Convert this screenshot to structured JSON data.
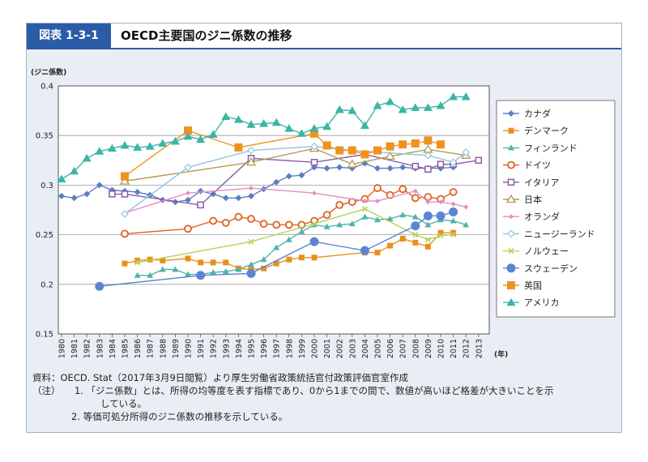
{
  "header": {
    "figure_number": "図表 1-3-1",
    "title": "OECD主要国のジニ係数の推移"
  },
  "chart_data": {
    "type": "line",
    "ylabel": "(ジニ係数)",
    "xunit": "(年)",
    "ylim": [
      0.15,
      0.4
    ],
    "yticks": [
      0.15,
      0.2,
      0.25,
      0.3,
      0.35,
      0.4
    ],
    "ytick_labels": [
      "0.15",
      "0.2",
      "0.25",
      "0.3",
      "0.35",
      "0.4"
    ],
    "categories": [
      "1980",
      "1981",
      "1982",
      "1983",
      "1984",
      "1985",
      "1986",
      "1987",
      "1988",
      "1989",
      "1990",
      "1991",
      "1992",
      "1993",
      "1994",
      "1995",
      "1996",
      "1997",
      "1998",
      "1999",
      "2000",
      "2001",
      "2002",
      "2003",
      "2004",
      "2005",
      "2006",
      "2007",
      "2008",
      "2009",
      "2010",
      "2011",
      "2012",
      "2013"
    ],
    "series": [
      {
        "name": "カナダ",
        "color": "#5b7fc0",
        "marker": "diamond",
        "points": [
          [
            1980,
            0.289
          ],
          [
            1981,
            0.287
          ],
          [
            1982,
            0.291
          ],
          [
            1983,
            0.3
          ],
          [
            1984,
            0.295
          ],
          [
            1985,
            0.294
          ],
          [
            1986,
            0.293
          ],
          [
            1987,
            0.29
          ],
          [
            1988,
            0.285
          ],
          [
            1989,
            0.283
          ],
          [
            1990,
            0.285
          ],
          [
            1991,
            0.294
          ],
          [
            1992,
            0.291
          ],
          [
            1993,
            0.287
          ],
          [
            1994,
            0.287
          ],
          [
            1995,
            0.289
          ],
          [
            1996,
            0.296
          ],
          [
            1997,
            0.303
          ],
          [
            1998,
            0.309
          ],
          [
            1999,
            0.31
          ],
          [
            2000,
            0.318
          ],
          [
            2001,
            0.317
          ],
          [
            2002,
            0.318
          ],
          [
            2003,
            0.317
          ],
          [
            2004,
            0.322
          ],
          [
            2005,
            0.317
          ],
          [
            2006,
            0.317
          ],
          [
            2007,
            0.318
          ],
          [
            2008,
            0.317
          ],
          [
            2009,
            0.317
          ],
          [
            2010,
            0.317
          ],
          [
            2011,
            0.318
          ]
        ]
      },
      {
        "name": "デンマーク",
        "color": "#e8901c",
        "marker": "square-small",
        "points": [
          [
            1985,
            0.221
          ],
          [
            1986,
            0.224
          ],
          [
            1987,
            0.225
          ],
          [
            1988,
            0.224
          ],
          [
            1990,
            0.226
          ],
          [
            1991,
            0.222
          ],
          [
            1992,
            0.222
          ],
          [
            1993,
            0.222
          ],
          [
            1994,
            0.216
          ],
          [
            1995,
            0.215
          ],
          [
            1996,
            0.216
          ],
          [
            1997,
            0.221
          ],
          [
            1998,
            0.225
          ],
          [
            1999,
            0.227
          ],
          [
            2000,
            0.227
          ],
          [
            2004,
            0.232
          ],
          [
            2005,
            0.232
          ],
          [
            2006,
            0.239
          ],
          [
            2007,
            0.246
          ],
          [
            2008,
            0.242
          ],
          [
            2009,
            0.238
          ],
          [
            2010,
            0.252
          ],
          [
            2011,
            0.252
          ]
        ]
      },
      {
        "name": "フィンランド",
        "color": "#4fb3a8",
        "marker": "triangle-small",
        "points": [
          [
            1986,
            0.209
          ],
          [
            1987,
            0.209
          ],
          [
            1988,
            0.215
          ],
          [
            1989,
            0.215
          ],
          [
            1990,
            0.21
          ],
          [
            1991,
            0.21
          ],
          [
            1992,
            0.212
          ],
          [
            1993,
            0.213
          ],
          [
            1994,
            0.215
          ],
          [
            1995,
            0.22
          ],
          [
            1996,
            0.225
          ],
          [
            1997,
            0.237
          ],
          [
            1998,
            0.245
          ],
          [
            1999,
            0.253
          ],
          [
            2000,
            0.26
          ],
          [
            2001,
            0.258
          ],
          [
            2002,
            0.26
          ],
          [
            2003,
            0.261
          ],
          [
            2004,
            0.268
          ],
          [
            2005,
            0.265
          ],
          [
            2006,
            0.266
          ],
          [
            2007,
            0.27
          ],
          [
            2008,
            0.268
          ],
          [
            2009,
            0.26
          ],
          [
            2010,
            0.265
          ],
          [
            2011,
            0.264
          ],
          [
            2012,
            0.26
          ]
        ]
      },
      {
        "name": "ドイツ",
        "color": "#e06020",
        "marker": "circle-open",
        "points": [
          [
            1985,
            0.251
          ],
          [
            1990,
            0.256
          ],
          [
            1992,
            0.264
          ],
          [
            1993,
            0.262
          ],
          [
            1994,
            0.268
          ],
          [
            1995,
            0.266
          ],
          [
            1996,
            0.261
          ],
          [
            1997,
            0.26
          ],
          [
            1998,
            0.26
          ],
          [
            1999,
            0.26
          ],
          [
            2000,
            0.264
          ],
          [
            2001,
            0.27
          ],
          [
            2002,
            0.28
          ],
          [
            2003,
            0.283
          ],
          [
            2004,
            0.286
          ],
          [
            2005,
            0.297
          ],
          [
            2006,
            0.29
          ],
          [
            2007,
            0.296
          ],
          [
            2008,
            0.287
          ],
          [
            2009,
            0.288
          ],
          [
            2010,
            0.286
          ],
          [
            2011,
            0.293
          ]
        ]
      },
      {
        "name": "イタリア",
        "color": "#8a5ca8",
        "marker": "square-open",
        "points": [
          [
            1984,
            0.291
          ],
          [
            1985,
            0.291
          ],
          [
            1991,
            0.28
          ],
          [
            1995,
            0.327
          ],
          [
            2000,
            0.323
          ],
          [
            2004,
            0.331
          ],
          [
            2008,
            0.319
          ],
          [
            2009,
            0.316
          ],
          [
            2010,
            0.321
          ],
          [
            2011,
            0.321
          ],
          [
            2013,
            0.325
          ]
        ]
      },
      {
        "name": "日本",
        "color": "#b39a50",
        "marker": "triangle-open",
        "points": [
          [
            1985,
            0.304
          ],
          [
            1995,
            0.323
          ],
          [
            2000,
            0.337
          ],
          [
            2003,
            0.321
          ],
          [
            2006,
            0.329
          ],
          [
            2009,
            0.336
          ],
          [
            2012,
            0.33
          ]
        ]
      },
      {
        "name": "オランダ",
        "color": "#e48fbf",
        "marker": "diamond-small",
        "points": [
          [
            1985,
            0.272
          ],
          [
            1990,
            0.292
          ],
          [
            1995,
            0.297
          ],
          [
            2000,
            0.292
          ],
          [
            2004,
            0.284
          ],
          [
            2005,
            0.284
          ],
          [
            2008,
            0.294
          ],
          [
            2009,
            0.283
          ],
          [
            2010,
            0.283
          ],
          [
            2011,
            0.281
          ],
          [
            2012,
            0.278
          ]
        ]
      },
      {
        "name": "ニュージーランド",
        "color": "#8fc4e6",
        "marker": "diamond-open",
        "points": [
          [
            1985,
            0.271
          ],
          [
            1990,
            0.318
          ],
          [
            1995,
            0.335
          ],
          [
            2000,
            0.339
          ],
          [
            2003,
            0.335
          ],
          [
            2009,
            0.33
          ],
          [
            2011,
            0.323
          ],
          [
            2012,
            0.333
          ]
        ]
      },
      {
        "name": "ノルウェー",
        "color": "#b5d35a",
        "marker": "x",
        "points": [
          [
            1986,
            0.222
          ],
          [
            1995,
            0.243
          ],
          [
            2000,
            0.261
          ],
          [
            2004,
            0.276
          ],
          [
            2008,
            0.25
          ],
          [
            2009,
            0.245
          ],
          [
            2010,
            0.249
          ],
          [
            2011,
            0.25
          ]
        ]
      },
      {
        "name": "スウェーデン",
        "color": "#5b85d0",
        "marker": "circle-big",
        "points": [
          [
            1983,
            0.198
          ],
          [
            1991,
            0.209
          ],
          [
            1995,
            0.211
          ],
          [
            2000,
            0.243
          ],
          [
            2004,
            0.234
          ],
          [
            2008,
            0.259
          ],
          [
            2009,
            0.269
          ],
          [
            2010,
            0.269
          ],
          [
            2011,
            0.273
          ]
        ]
      },
      {
        "name": "英国",
        "color": "#f0921e",
        "marker": "square-big",
        "points": [
          [
            1985,
            0.309
          ],
          [
            1990,
            0.355
          ],
          [
            1994,
            0.338
          ],
          [
            2000,
            0.352
          ],
          [
            2001,
            0.34
          ],
          [
            2002,
            0.335
          ],
          [
            2003,
            0.335
          ],
          [
            2004,
            0.331
          ],
          [
            2005,
            0.335
          ],
          [
            2006,
            0.339
          ],
          [
            2007,
            0.341
          ],
          [
            2008,
            0.342
          ],
          [
            2009,
            0.345
          ],
          [
            2010,
            0.341
          ]
        ]
      },
      {
        "name": "アメリカ",
        "color": "#3ab5a6",
        "marker": "triangle-big",
        "points": [
          [
            1980,
            0.306
          ],
          [
            1981,
            0.314
          ],
          [
            1982,
            0.327
          ],
          [
            1983,
            0.334
          ],
          [
            1984,
            0.337
          ],
          [
            1985,
            0.34
          ],
          [
            1986,
            0.338
          ],
          [
            1987,
            0.339
          ],
          [
            1988,
            0.342
          ],
          [
            1989,
            0.344
          ],
          [
            1990,
            0.349
          ],
          [
            1991,
            0.346
          ],
          [
            1992,
            0.351
          ],
          [
            1993,
            0.369
          ],
          [
            1994,
            0.366
          ],
          [
            1995,
            0.361
          ],
          [
            1996,
            0.362
          ],
          [
            1997,
            0.363
          ],
          [
            1998,
            0.357
          ],
          [
            1999,
            0.352
          ],
          [
            2000,
            0.357
          ],
          [
            2001,
            0.359
          ],
          [
            2002,
            0.376
          ],
          [
            2003,
            0.375
          ],
          [
            2004,
            0.36
          ],
          [
            2005,
            0.38
          ],
          [
            2006,
            0.384
          ],
          [
            2007,
            0.376
          ],
          [
            2008,
            0.378
          ],
          [
            2009,
            0.378
          ],
          [
            2010,
            0.38
          ],
          [
            2011,
            0.389
          ],
          [
            2012,
            0.389
          ]
        ]
      }
    ]
  },
  "notes": {
    "source": "資料：OECD. Stat（2017年3月9日閲覧）より厚生労働省政策統括官付政策評価官室作成",
    "note_label": "（注）",
    "note1_num": "1.",
    "note1_line1": "「ジニ係数」とは、所得の均等度を表す指標であり、0から1までの間で、数値が高いほど格差が大きいことを示",
    "note1_line2": "している。",
    "note2_num": "2.",
    "note2_text": "等価可処分所得のジニ係数の推移を示している。"
  }
}
